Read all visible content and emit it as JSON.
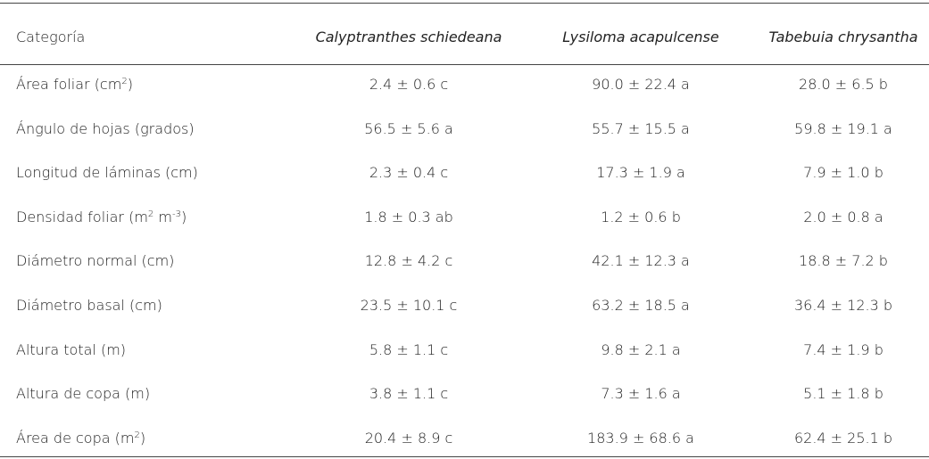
{
  "table": {
    "header": [
      "Categoría",
      "Calyptranthes schiedeana",
      "Lysiloma acapulcense",
      "Tabebuia chrysantha"
    ],
    "rows": [
      [
        [
          {
            "t": "Área foliar (cm"
          },
          {
            "sup": "2"
          },
          {
            "t": ")"
          }
        ],
        "2.4 ± 0.6 c",
        "90.0 ± 22.4 a",
        "28.0 ± 6.5 b"
      ],
      [
        [
          {
            "t": "Ángulo de hojas (grados)"
          }
        ],
        "56.5 ± 5.6 a",
        "55.7 ± 15.5 a",
        "59.8 ± 19.1 a"
      ],
      [
        [
          {
            "t": "Longitud de láminas (cm)"
          }
        ],
        "2.3 ± 0.4 c",
        "17.3 ± 1.9 a",
        "7.9 ± 1.0 b"
      ],
      [
        [
          {
            "t": "Densidad foliar (m"
          },
          {
            "sup": "2"
          },
          {
            "t": " m"
          },
          {
            "sup": "-3"
          },
          {
            "t": ")"
          }
        ],
        "1.8 ± 0.3 ab",
        "1.2 ± 0.6 b",
        "2.0 ± 0.8 a"
      ],
      [
        [
          {
            "t": "Diámetro normal (cm)"
          }
        ],
        "12.8 ± 4.2 c",
        "42.1 ± 12.3 a",
        "18.8 ± 7.2 b"
      ],
      [
        [
          {
            "t": "Diámetro basal (cm)"
          }
        ],
        "23.5 ± 10.1 c",
        "63.2 ± 18.5 a",
        "36.4 ± 12.3 b"
      ],
      [
        [
          {
            "t": "Altura total (m)"
          }
        ],
        "5.8 ± 1.1 c",
        "9.8 ± 2.1 a",
        "7.4 ± 1.9 b"
      ],
      [
        [
          {
            "t": "Altura de copa (m)"
          }
        ],
        "3.8 ± 1.1 c",
        "7.3 ± 1.6 a",
        "5.1 ± 1.8 b"
      ],
      [
        [
          {
            "t": "Área de copa (m"
          },
          {
            "sup": "2"
          },
          {
            "t": ")"
          }
        ],
        "20.4 ± 8.9 c",
        "183.9 ± 68.6 a",
        "62.4 ± 25.1 b"
      ]
    ]
  }
}
